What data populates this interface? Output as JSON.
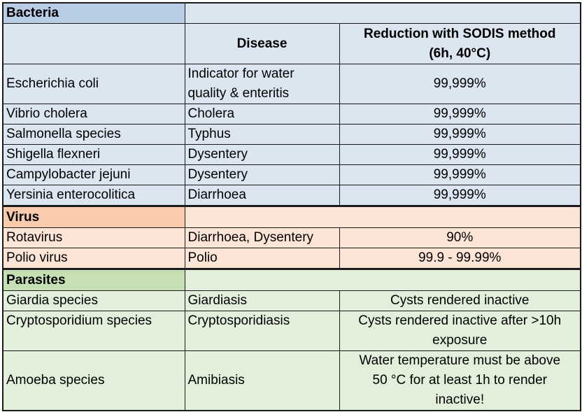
{
  "bacteria": {
    "section_label": "Bacteria",
    "col_disease": "Disease",
    "col_reduction_line1": "Reduction with SODIS method",
    "col_reduction_line2": "(6h, 40°C)",
    "rows": [
      {
        "organism": "Escherichia coli",
        "disease_line1": "Indicator for water",
        "disease_line2": "quality & enteritis",
        "reduction": "99,999%"
      },
      {
        "organism": "Vibrio cholera",
        "disease": "Cholera",
        "reduction": "99,999%"
      },
      {
        "organism": "Salmonella species",
        "disease": "Typhus",
        "reduction": "99,999%"
      },
      {
        "organism": "Shigella flexneri",
        "disease": "Dysentery",
        "reduction": "99,999%"
      },
      {
        "organism": "Campylobacter jejuni",
        "disease": "Dysentery",
        "reduction": "99,999%"
      },
      {
        "organism": "Yersinia enterocolitica",
        "disease": "Diarrhoea",
        "reduction": "99,999%"
      }
    ]
  },
  "virus": {
    "section_label": "Virus",
    "rows": [
      {
        "organism": "Rotavirus",
        "disease": "Diarrhoea, Dysentery",
        "reduction": "90%"
      },
      {
        "organism": "Polio virus",
        "disease": "Polio",
        "reduction": "99.9 - 99.99%"
      }
    ]
  },
  "parasites": {
    "section_label": "Parasites",
    "rows": [
      {
        "organism": "Giardia species",
        "disease": "Giardiasis",
        "reduction_line1": "Cysts rendered inactive"
      },
      {
        "organism": "Cryptosporidium species",
        "disease": "Cryptosporidiasis",
        "reduction_line1": "Cysts rendered inactive after >10h",
        "reduction_line2": "exposure"
      },
      {
        "organism": "Amoeba species",
        "disease": "Amibiasis",
        "reduction_line1": "Water temperature must be above",
        "reduction_line2": "50 °C for at least 1h to render",
        "reduction_line3": "inactive!"
      }
    ]
  }
}
